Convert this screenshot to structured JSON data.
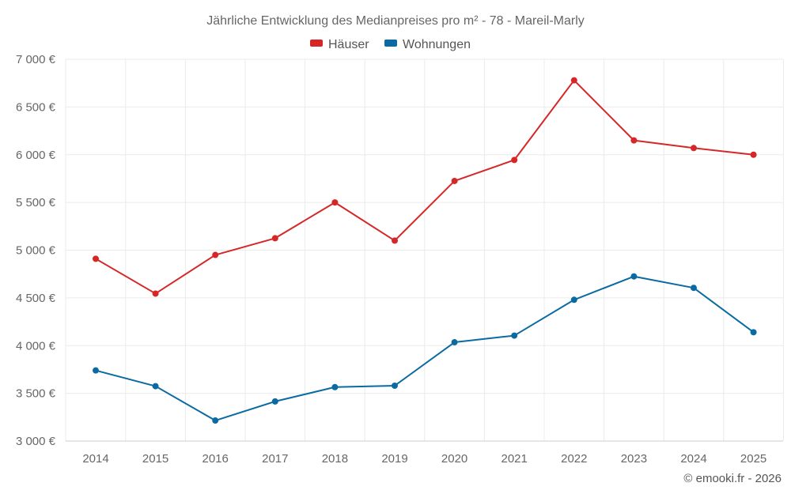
{
  "chart_data": {
    "type": "line",
    "title": "Jährliche Entwicklung des Medianpreises pro m² - 78 - Mareil-Marly",
    "xlabel": "",
    "ylabel": "",
    "x": [
      "2014",
      "2015",
      "2016",
      "2017",
      "2018",
      "2019",
      "2020",
      "2021",
      "2022",
      "2023",
      "2024",
      "2025"
    ],
    "ylim": [
      3000,
      7000
    ],
    "yticks": [
      3000,
      3500,
      4000,
      4500,
      5000,
      5500,
      6000,
      6500,
      7000
    ],
    "ytick_labels": [
      "3 000 €",
      "3 500 €",
      "4 000 €",
      "4 500 €",
      "5 000 €",
      "5 500 €",
      "6 000 €",
      "6 500 €",
      "7 000 €"
    ],
    "grid": true,
    "legend_position": "top-center",
    "series": [
      {
        "name": "Häuser",
        "color": "#d62728",
        "values": [
          4910,
          4545,
          4950,
          5125,
          5500,
          5100,
          5725,
          5945,
          6780,
          6150,
          6070,
          6000
        ]
      },
      {
        "name": "Wohnungen",
        "color": "#0a6aa1",
        "values": [
          3740,
          3575,
          3215,
          3415,
          3565,
          3580,
          4035,
          4105,
          4480,
          4725,
          4605,
          4140
        ]
      }
    ]
  },
  "credit": "© emooki.fr - 2026"
}
